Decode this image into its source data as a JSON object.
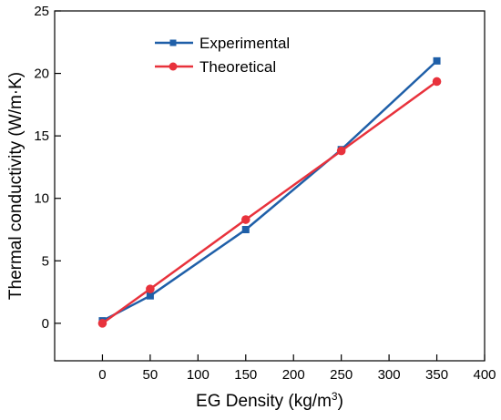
{
  "chart_data": {
    "type": "line",
    "xlabel": "EG Density (kg/m",
    "xlabel_superscript": "3",
    "xlabel_suffix": ")",
    "ylabel": "Thermal conductivity (W/m·K)",
    "xlim": [
      -50,
      400
    ],
    "ylim": [
      -3,
      25
    ],
    "x_ticks": [
      0,
      50,
      100,
      150,
      200,
      250,
      300,
      350,
      400
    ],
    "y_ticks": [
      0,
      5,
      10,
      15,
      20,
      25
    ],
    "grid": false,
    "legend_position": "top-left",
    "series": [
      {
        "name": "Experimental",
        "marker": "square",
        "color": "#1f5fa8",
        "x": [
          0,
          50,
          150,
          250,
          350
        ],
        "y": [
          0.2,
          2.2,
          7.5,
          13.9,
          21.0
        ]
      },
      {
        "name": "Theoretical",
        "marker": "circle",
        "color": "#e8323c",
        "x": [
          0,
          50,
          150,
          250,
          350
        ],
        "y": [
          0.0,
          2.75,
          8.3,
          13.8,
          19.35
        ]
      }
    ]
  }
}
